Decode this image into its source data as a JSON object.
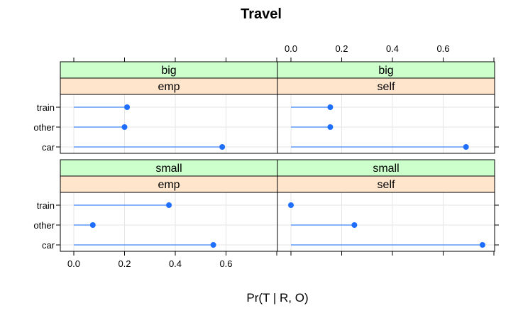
{
  "chart_data": {
    "type": "dotplot",
    "title": "Travel",
    "xlabel": "Pr(T | R, O)",
    "ylabel": "",
    "categories": [
      "train",
      "other",
      "car"
    ],
    "xlim": [
      0,
      0.8
    ],
    "x_ticks": [
      0.0,
      0.2,
      0.4,
      0.6
    ],
    "x_tick_labels": [
      "0.0",
      "0.2",
      "0.4",
      "0.6"
    ],
    "grid": true,
    "colors": {
      "point": "#1f6fff",
      "line": "#3d85f5",
      "strip_top": "#ccffcc",
      "strip_bottom": "#ffe5cc",
      "grid": "#e6e6e6"
    },
    "panels": [
      {
        "strips": [
          "big",
          "emp"
        ],
        "values": {
          "train": 0.21,
          "other": 0.2,
          "car": 0.585
        }
      },
      {
        "strips": [
          "big",
          "self"
        ],
        "values": {
          "train": 0.155,
          "other": 0.155,
          "car": 0.69
        }
      },
      {
        "strips": [
          "small",
          "emp"
        ],
        "values": {
          "train": 0.375,
          "other": 0.075,
          "car": 0.55
        }
      },
      {
        "strips": [
          "small",
          "self"
        ],
        "values": {
          "train": 0.0,
          "other": 0.25,
          "car": 0.755
        }
      }
    ]
  }
}
